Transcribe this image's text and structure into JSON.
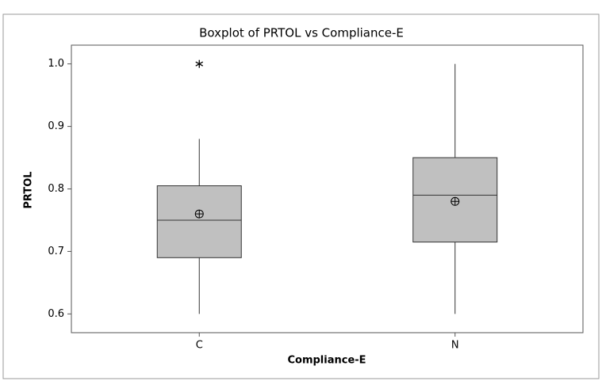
{
  "chart_data": {
    "type": "box",
    "title": "Boxplot of PRTOL vs Compliance-E",
    "x_label": "Compliance-E",
    "y_label": "PRTOL",
    "categories": [
      "C",
      "N"
    ],
    "boxes": [
      {
        "whislo": 0.6,
        "q1": 0.69,
        "med": 0.75,
        "q3": 0.805,
        "whishi": 0.88,
        "mean": 0.76,
        "outliers": [
          1.0
        ]
      },
      {
        "whislo": 0.6,
        "q1": 0.715,
        "med": 0.79,
        "q3": 0.85,
        "whishi": 1.0,
        "mean": 0.78,
        "outliers": []
      }
    ],
    "color": "#c0c0c0",
    "ylim": [
      0.57,
      1.03
    ],
    "yticks": [
      0.6,
      0.7,
      0.8,
      0.9,
      {
        "value": 1,
        "label": "1.0"
      }
    ]
  }
}
